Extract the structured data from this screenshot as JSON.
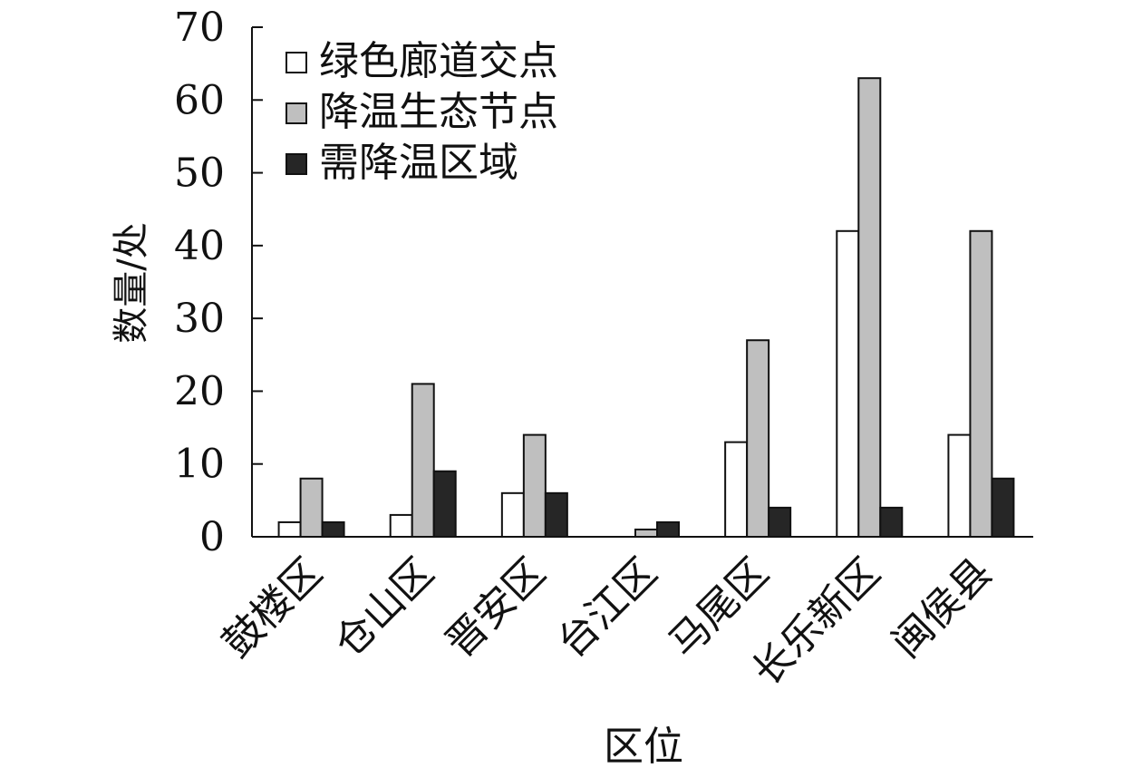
{
  "chart_data": {
    "type": "bar",
    "title": "",
    "xlabel": "区位",
    "ylabel": "数量/处",
    "ylim": [
      0,
      70
    ],
    "yticks": [
      0,
      10,
      20,
      30,
      40,
      50,
      60,
      70
    ],
    "grid": false,
    "legend_position": "top-left",
    "categories": [
      "鼓楼区",
      "仓山区",
      "晋安区",
      "台江区",
      "马尾区",
      "长乐新区",
      "闽侯县"
    ],
    "series": [
      {
        "name": "绿色廊道交点",
        "color": "#ffffff",
        "values": [
          2,
          3,
          6,
          0,
          13,
          42,
          14
        ]
      },
      {
        "name": "降温生态节点",
        "color": "#bfbfbf",
        "values": [
          8,
          21,
          14,
          1,
          27,
          63,
          42
        ]
      },
      {
        "name": "需降温区域",
        "color": "#262626",
        "values": [
          2,
          9,
          6,
          2,
          4,
          4,
          8
        ]
      }
    ]
  }
}
